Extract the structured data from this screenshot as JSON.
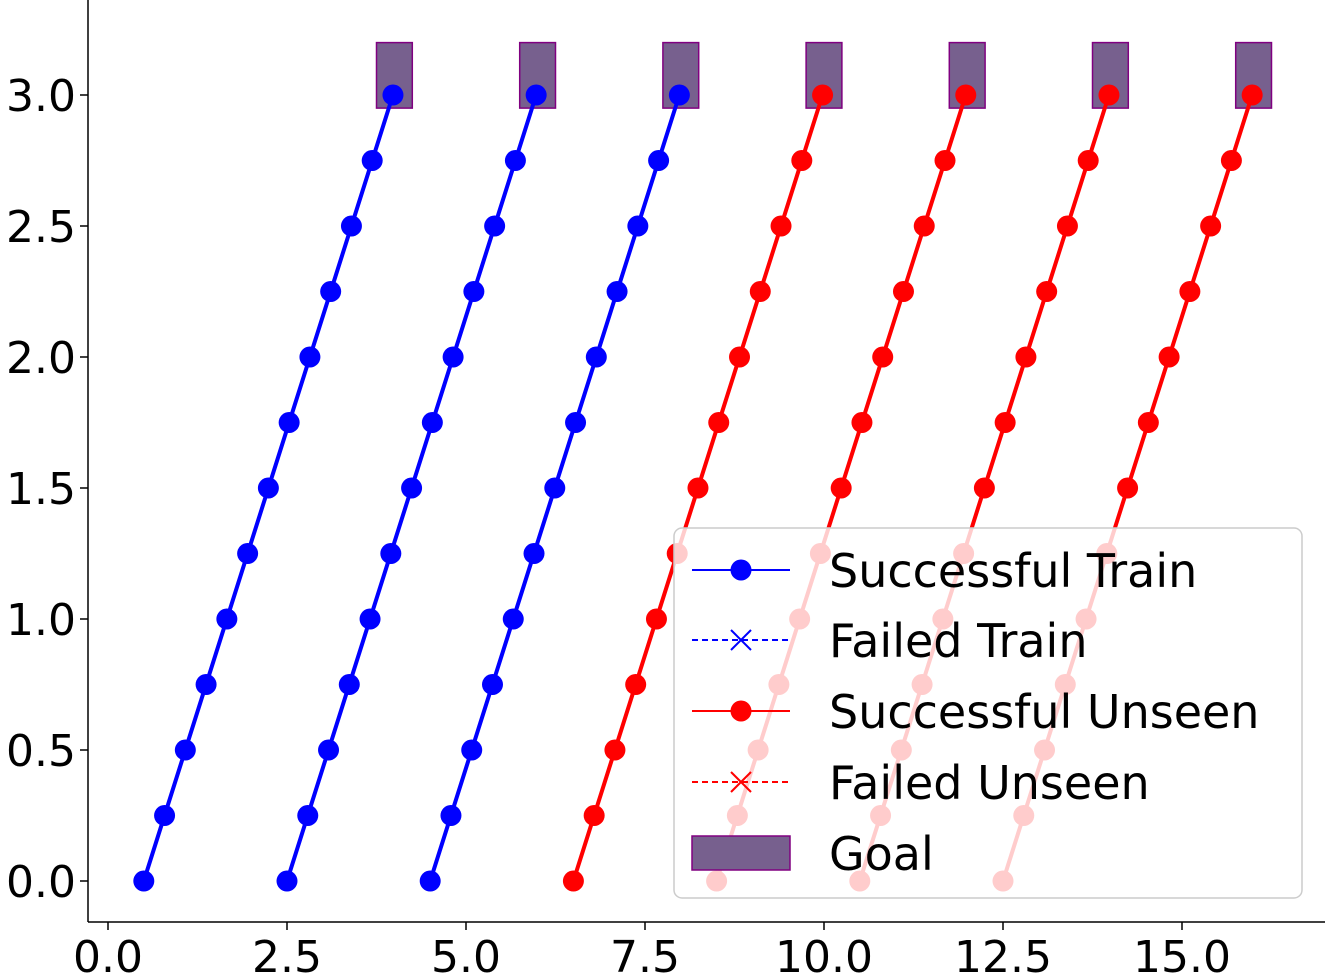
{
  "chart_data": {
    "type": "line",
    "title": "",
    "xlabel": "",
    "ylabel": "",
    "xlim": [
      -0.3,
      17.0
    ],
    "ylim": [
      -0.15,
      3.35
    ],
    "xticks": [
      "0.0",
      "2.5",
      "5.0",
      "7.5",
      "10.0",
      "12.5",
      "15.0"
    ],
    "yticks": [
      "0.0",
      "0.5",
      "1.0",
      "1.5",
      "2.0",
      "2.5",
      "3.0"
    ],
    "grid": false,
    "legend_position": "lower-right",
    "legend": [
      {
        "label": "Successful Train",
        "color": "#0000ff",
        "style": "solid",
        "marker": "circle"
      },
      {
        "label": "Failed Train",
        "color": "#0000ff",
        "style": "dashed",
        "marker": "x"
      },
      {
        "label": "Successful Unseen",
        "color": "#ff0000",
        "style": "solid",
        "marker": "circle"
      },
      {
        "label": "Failed Unseen",
        "color": "#ff0000",
        "style": "dashed",
        "marker": "x"
      },
      {
        "label": "Goal",
        "color": "#77608e",
        "style": "patch",
        "marker": "rect"
      }
    ],
    "goal": {
      "color": "#77608e",
      "edge_color": "#800080",
      "width": 0.5,
      "y": [
        2.95,
        3.2
      ],
      "centers": [
        4,
        6,
        8,
        10,
        12,
        14,
        16
      ]
    },
    "series": [
      {
        "color": "#0000ff",
        "x": [
          0.5,
          0.79,
          1.08,
          1.37,
          1.66,
          1.95,
          2.24,
          2.53,
          2.82,
          3.11,
          3.4,
          3.69,
          3.98
        ],
        "y": [
          0,
          0.25,
          0.5,
          0.75,
          1.0,
          1.25,
          1.5,
          1.75,
          2.0,
          2.25,
          2.5,
          2.75,
          3.0
        ]
      },
      {
        "color": "#0000ff",
        "x": [
          2.5,
          2.79,
          3.08,
          3.37,
          3.66,
          3.95,
          4.24,
          4.53,
          4.82,
          5.11,
          5.4,
          5.69,
          5.98
        ],
        "y": [
          0,
          0.25,
          0.5,
          0.75,
          1.0,
          1.25,
          1.5,
          1.75,
          2.0,
          2.25,
          2.5,
          2.75,
          3.0
        ]
      },
      {
        "color": "#0000ff",
        "x": [
          4.5,
          4.79,
          5.08,
          5.37,
          5.66,
          5.95,
          6.24,
          6.53,
          6.82,
          7.11,
          7.4,
          7.69,
          7.98
        ],
        "y": [
          0,
          0.25,
          0.5,
          0.75,
          1.0,
          1.25,
          1.5,
          1.75,
          2.0,
          2.25,
          2.5,
          2.75,
          3.0
        ]
      },
      {
        "color": "#ff0000",
        "x": [
          6.5,
          6.79,
          7.08,
          7.37,
          7.66,
          7.95,
          8.24,
          8.53,
          8.82,
          9.11,
          9.4,
          9.69,
          9.98
        ],
        "y": [
          0,
          0.25,
          0.5,
          0.75,
          1.0,
          1.25,
          1.5,
          1.75,
          2.0,
          2.25,
          2.5,
          2.75,
          3.0
        ]
      },
      {
        "color": "#ff0000",
        "x": [
          8.5,
          8.79,
          9.08,
          9.37,
          9.66,
          9.95,
          10.24,
          10.53,
          10.82,
          11.11,
          11.4,
          11.69,
          11.98
        ],
        "y": [
          0,
          0.25,
          0.5,
          0.75,
          1.0,
          1.25,
          1.5,
          1.75,
          2.0,
          2.25,
          2.5,
          2.75,
          3.0
        ]
      },
      {
        "color": "#ff0000",
        "x": [
          10.5,
          10.79,
          11.08,
          11.37,
          11.66,
          11.95,
          12.24,
          12.53,
          12.82,
          13.11,
          13.4,
          13.69,
          13.98
        ],
        "y": [
          0,
          0.25,
          0.5,
          0.75,
          1.0,
          1.25,
          1.5,
          1.75,
          2.0,
          2.25,
          2.5,
          2.75,
          3.0
        ]
      },
      {
        "color": "#ff0000",
        "x": [
          12.5,
          12.79,
          13.08,
          13.37,
          13.66,
          13.95,
          14.24,
          14.53,
          14.82,
          15.11,
          15.4,
          15.69,
          15.98
        ],
        "y": [
          0,
          0.25,
          0.5,
          0.75,
          1.0,
          1.25,
          1.5,
          1.75,
          2.0,
          2.25,
          2.5,
          2.75,
          3.0
        ]
      }
    ]
  }
}
